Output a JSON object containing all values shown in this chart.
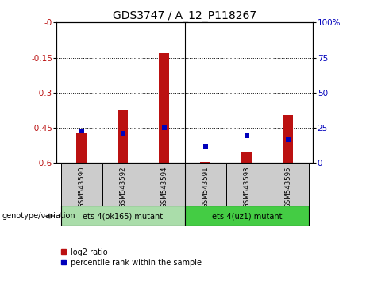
{
  "title": "GDS3747 / A_12_P118267",
  "samples": [
    "GSM543590",
    "GSM543592",
    "GSM543594",
    "GSM543591",
    "GSM543593",
    "GSM543595"
  ],
  "log2_ratio": [
    -0.47,
    -0.375,
    -0.13,
    -0.595,
    -0.555,
    -0.395
  ],
  "log2_bar_bottom": -0.6,
  "percentile_rank": [
    23.0,
    21.0,
    25.0,
    11.5,
    19.5,
    16.5
  ],
  "ylim_left": [
    -0.6,
    0.0
  ],
  "ylim_right": [
    0,
    100
  ],
  "yticks_left": [
    0.0,
    -0.15,
    -0.3,
    -0.45,
    -0.6
  ],
  "yticks_right": [
    0,
    25,
    50,
    75,
    100
  ],
  "group1_label": "ets-4(ok165) mutant",
  "group2_label": "ets-4(uz1) mutant",
  "genotype_label": "genotype/variation",
  "legend_bar_label": "log2 ratio",
  "legend_dot_label": "percentile rank within the sample",
  "bar_color": "#BB1111",
  "dot_color": "#0000BB",
  "group1_color": "#AADDAA",
  "group2_color": "#44CC44",
  "xlabel_bg": "#CCCCCC",
  "title_fontsize": 10,
  "tick_fontsize": 7.5,
  "bar_width": 0.25
}
